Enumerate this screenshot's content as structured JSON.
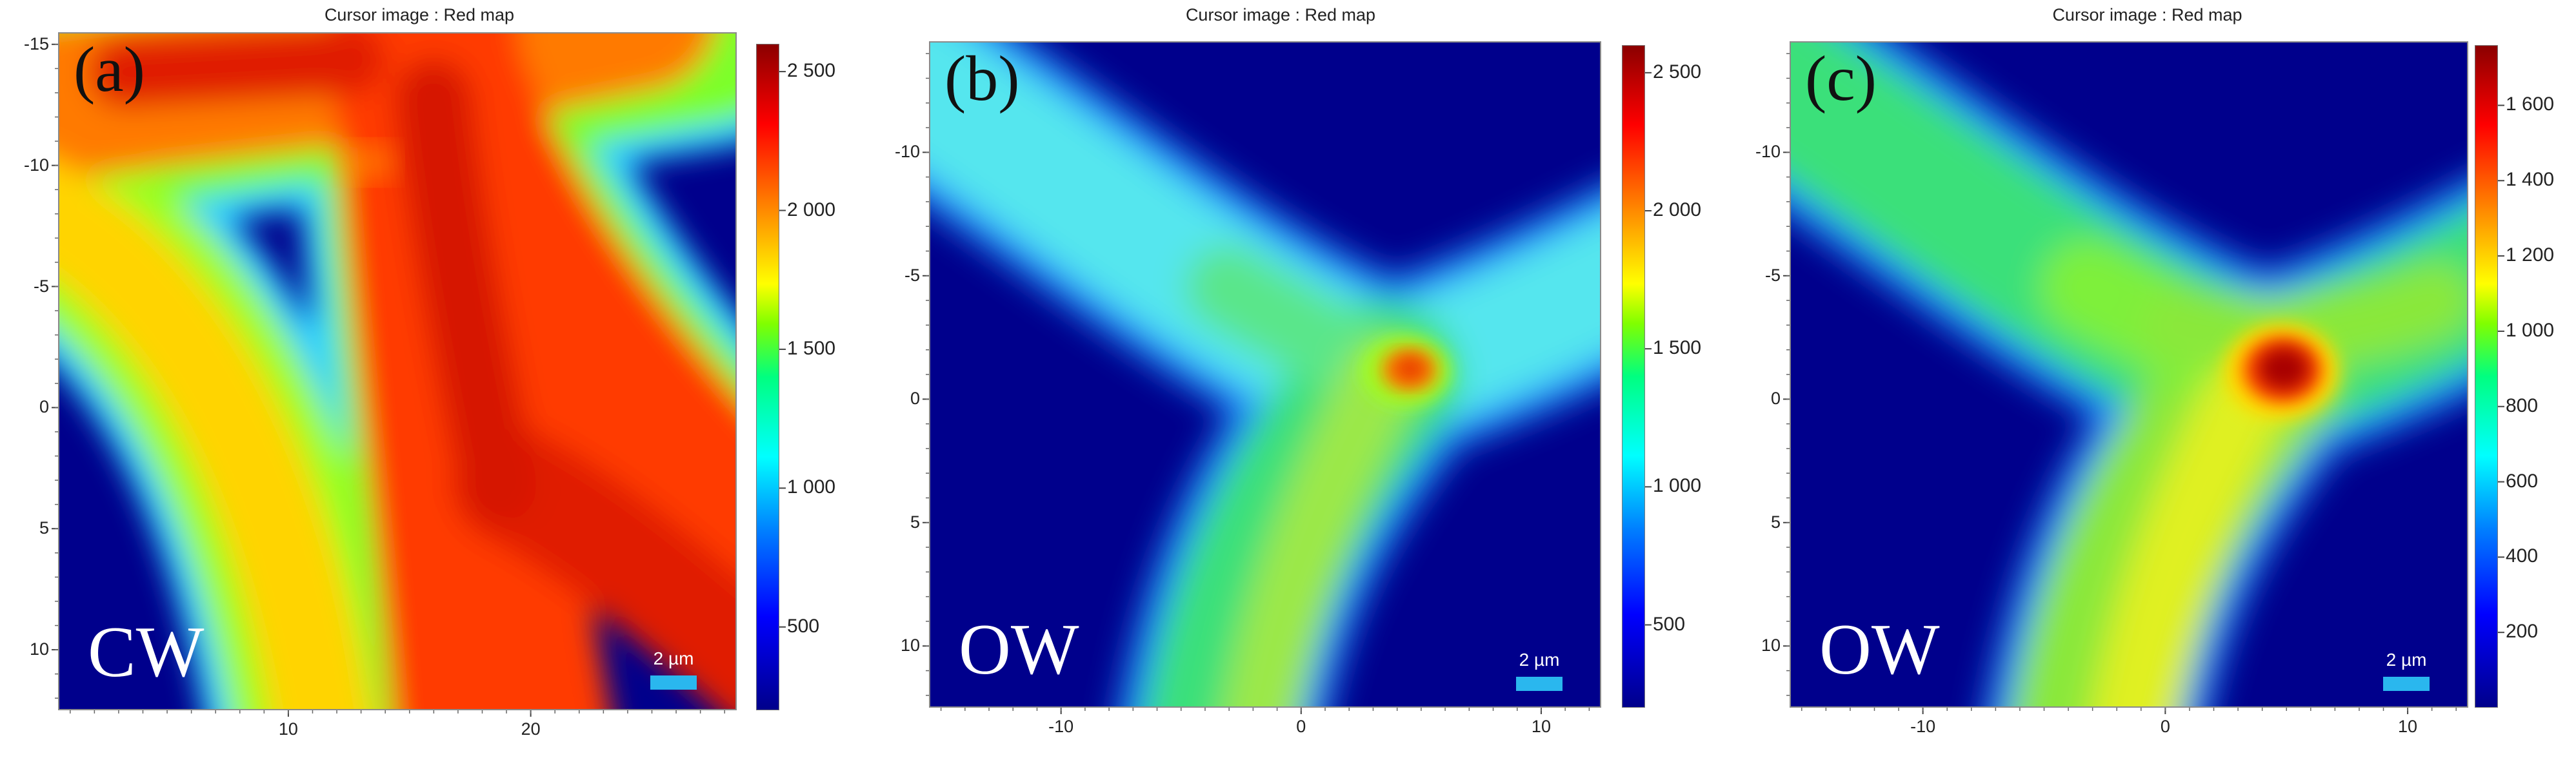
{
  "panels": [
    {
      "title": "Cursor image : Red map",
      "letter": "(a)",
      "mode": "CW",
      "scalebar": "2 µm",
      "yticks": [
        "-15",
        "-10",
        "-5",
        "0",
        "5",
        "10"
      ],
      "xticks": [
        "10",
        "20"
      ],
      "colorbar_ticks": [
        "2 500",
        "2 000",
        "1 500",
        "1 000",
        "500"
      ]
    },
    {
      "title": "Cursor image : Red map",
      "letter": "(b)",
      "mode": "OW",
      "scalebar": "2 µm",
      "yticks": [
        "-10",
        "-5",
        "0",
        "5",
        "10"
      ],
      "xticks": [
        "-10",
        "0",
        "10"
      ],
      "colorbar_ticks": [
        "2 500",
        "2 000",
        "1 500",
        "1 000",
        "500"
      ]
    },
    {
      "title": "Cursor image : Red map",
      "letter": "(c)",
      "mode": "OW",
      "scalebar": "2 µm",
      "yticks": [
        "-10",
        "-5",
        "0",
        "5",
        "10"
      ],
      "xticks": [
        "-10",
        "0",
        "10"
      ],
      "colorbar_ticks": [
        "1 600",
        "1 400",
        "1 200",
        "1 000",
        "800",
        "600",
        "400",
        "200"
      ]
    }
  ],
  "chart_data": [
    {
      "type": "heatmap",
      "title": "Cursor image : Red map",
      "x_range": [
        0.5,
        28.5
      ],
      "y_range": [
        -15.5,
        12.5
      ],
      "y_inverted": true,
      "x_ticks": [
        10,
        20
      ],
      "y_ticks": [
        -15,
        -10,
        -5,
        0,
        5,
        10
      ],
      "color_range": [
        200,
        2600
      ],
      "colorbar_ticks": [
        2500,
        2000,
        1500,
        1000,
        500
      ],
      "colormap": "jet",
      "description_values": {
        "background": 250,
        "branch_core": 2200,
        "branch_edge": 1300
      }
    },
    {
      "type": "heatmap",
      "title": "Cursor image : Red map",
      "x_range": [
        -15.5,
        12.5
      ],
      "y_range": [
        -14.5,
        12.5
      ],
      "y_inverted": true,
      "x_ticks": [
        -10,
        0,
        10
      ],
      "y_ticks": [
        -10,
        -5,
        0,
        5,
        10
      ],
      "color_range": [
        200,
        2600
      ],
      "colorbar_ticks": [
        2500,
        2000,
        1500,
        1000,
        500
      ],
      "colormap": "jet",
      "description_values": {
        "background": 250,
        "branch_core": 1400,
        "hotspot_max": 2150
      }
    },
    {
      "type": "heatmap",
      "title": "Cursor image : Red map",
      "x_range": [
        -15.5,
        12.5
      ],
      "y_range": [
        -14.5,
        12.5
      ],
      "y_inverted": true,
      "x_ticks": [
        -10,
        0,
        10
      ],
      "y_ticks": [
        -10,
        -5,
        0,
        5,
        10
      ],
      "color_range": [
        0,
        1760
      ],
      "colorbar_ticks": [
        1600,
        1400,
        1200,
        1000,
        800,
        600,
        400,
        200
      ],
      "colormap": "jet",
      "description_values": {
        "background": 60,
        "branch_core": 950,
        "hotspot_max": 1750
      }
    }
  ]
}
